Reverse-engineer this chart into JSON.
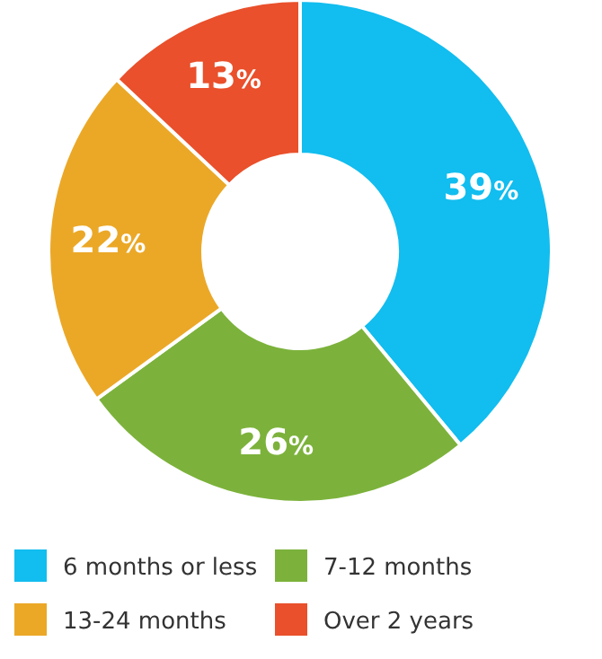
{
  "chart_data": {
    "type": "donut",
    "categories": [
      "6 months or less",
      "7-12 months",
      "13-24 months",
      "Over 2 years"
    ],
    "values": [
      39,
      26,
      22,
      13
    ],
    "colors": [
      "#12bdef",
      "#7cb23b",
      "#eba827",
      "#e9502b"
    ],
    "value_labels": [
      "39%",
      "26%",
      "22%",
      "13%"
    ],
    "legend": "bottom"
  }
}
